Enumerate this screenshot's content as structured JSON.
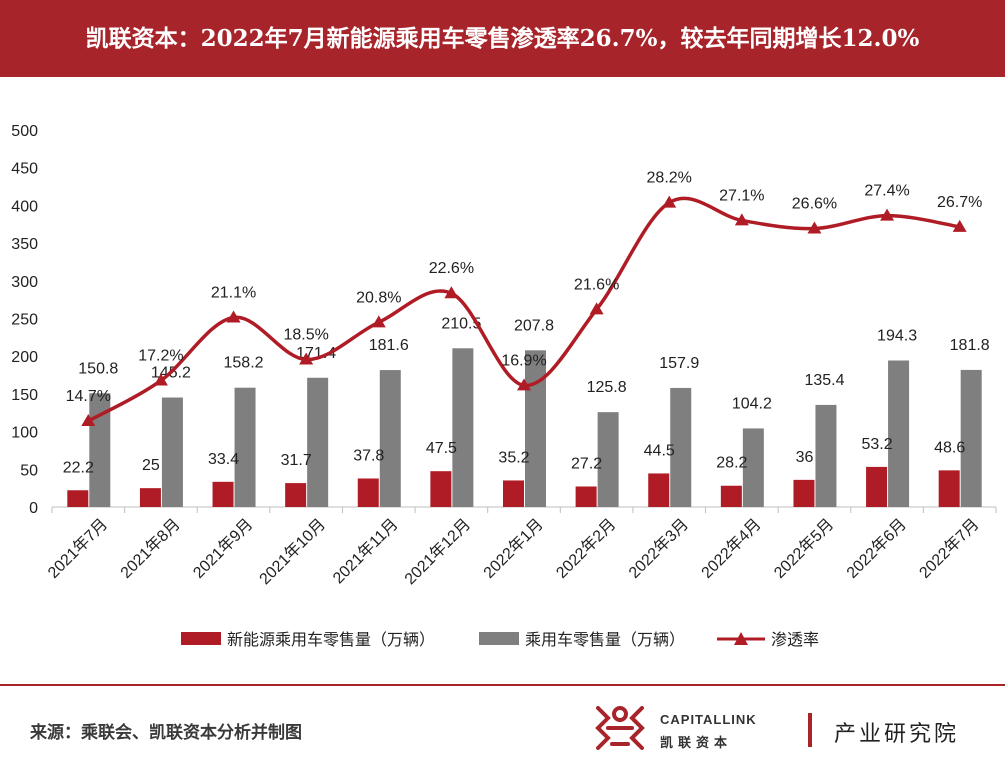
{
  "header": {
    "title": "凯联资本：2022年7月新能源乘用车零售渗透率26.7%，较去年同期增长12.0%"
  },
  "footer": {
    "source": "来源：乘联会、凯联资本分析并制图",
    "brand_en": "CAPITALLINK",
    "brand_cn": "凯联资本",
    "brand_unit": "产业研究院"
  },
  "colors": {
    "accent": "#a8242b",
    "bar_nev": "#b01c25",
    "bar_total": "#7f7f7f",
    "line": "#b01c25"
  },
  "chart_data": {
    "type": "bar",
    "categories": [
      "2021年7月",
      "2021年8月",
      "2021年9月",
      "2021年10月",
      "2021年11月",
      "2021年12月",
      "2022年1月",
      "2022年2月",
      "2022年3月",
      "2022年4月",
      "2022年5月",
      "2022年6月",
      "2022年7月"
    ],
    "ylim": [
      0,
      500
    ],
    "yticks": [
      0,
      50,
      100,
      150,
      200,
      250,
      300,
      350,
      400,
      450,
      500
    ],
    "series": [
      {
        "name": "新能源乘用车零售量（万辆）",
        "type": "bar",
        "values": [
          22.2,
          25,
          33.4,
          31.7,
          37.8,
          47.5,
          35.2,
          27.2,
          44.5,
          28.2,
          36,
          53.2,
          48.6
        ],
        "labels": [
          "22.2",
          "25",
          "33.4",
          "31.7",
          "37.8",
          "47.5",
          "35.2",
          "27.2",
          "44.5",
          "28.2",
          "36",
          "53.2",
          "48.6"
        ]
      },
      {
        "name": "乘用车零售量（万辆）",
        "type": "bar",
        "values": [
          150.8,
          145.2,
          158.2,
          171.4,
          181.6,
          210.5,
          207.8,
          125.8,
          157.9,
          104.2,
          135.4,
          194.3,
          181.8
        ],
        "labels": [
          "150.8",
          "145.2",
          "158.2",
          "171.4",
          "181.6",
          "210.5",
          "207.8",
          "125.8",
          "157.9",
          "104.2",
          "135.4",
          "194.3",
          "181.8"
        ]
      },
      {
        "name": "渗透率",
        "type": "line",
        "axis": "secondary",
        "values": [
          14.7,
          17.2,
          21.1,
          18.5,
          20.8,
          22.6,
          16.9,
          21.6,
          28.2,
          27.1,
          26.6,
          27.4,
          26.7
        ],
        "labels": [
          "14.7%",
          "17.2%",
          "21.1%",
          "18.5%",
          "20.8%",
          "22.6%",
          "16.9%",
          "21.6%",
          "28.2%",
          "27.1%",
          "26.6%",
          "27.4%",
          "26.7%"
        ],
        "unit": "%"
      }
    ],
    "secondary_axis_hidden": true,
    "legend_position": "bottom",
    "grid": false
  }
}
